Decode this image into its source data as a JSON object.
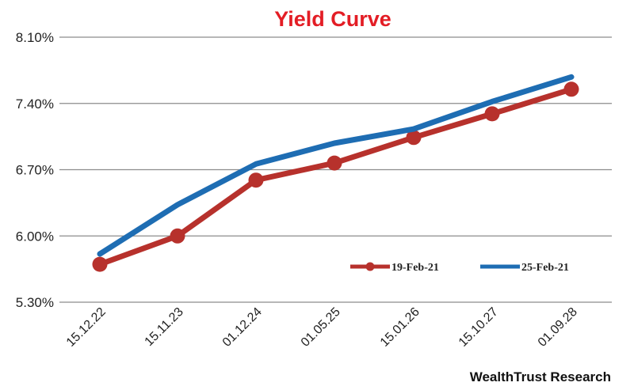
{
  "colors": {
    "title": "#e31d25",
    "series_1": "#b7312c",
    "series_2": "#1e6db3",
    "grid": "#8c8c8c"
  },
  "chart_data": {
    "type": "line",
    "title": "Yield Curve",
    "source": "WealthTrust Research",
    "categories": [
      "15.12.22",
      "15.11.23",
      "01.12.24",
      "01.05.25",
      "15.01.26",
      "15.10.27",
      "01.09.28"
    ],
    "y_ticks": [
      "8.10%",
      "7.40%",
      "6.70%",
      "6.00%",
      "5.30%"
    ],
    "ylim": [
      5.3,
      8.1
    ],
    "grid": "horizontal",
    "legend_position": "bottom-right",
    "series": [
      {
        "name": "19-Feb-21",
        "values": [
          5.7,
          6.0,
          6.59,
          6.77,
          7.04,
          7.29,
          7.55
        ],
        "marker": "circle"
      },
      {
        "name": "25-Feb-21",
        "values": [
          5.81,
          6.33,
          6.76,
          6.98,
          7.13,
          7.42,
          7.68
        ],
        "marker": "none"
      }
    ]
  }
}
